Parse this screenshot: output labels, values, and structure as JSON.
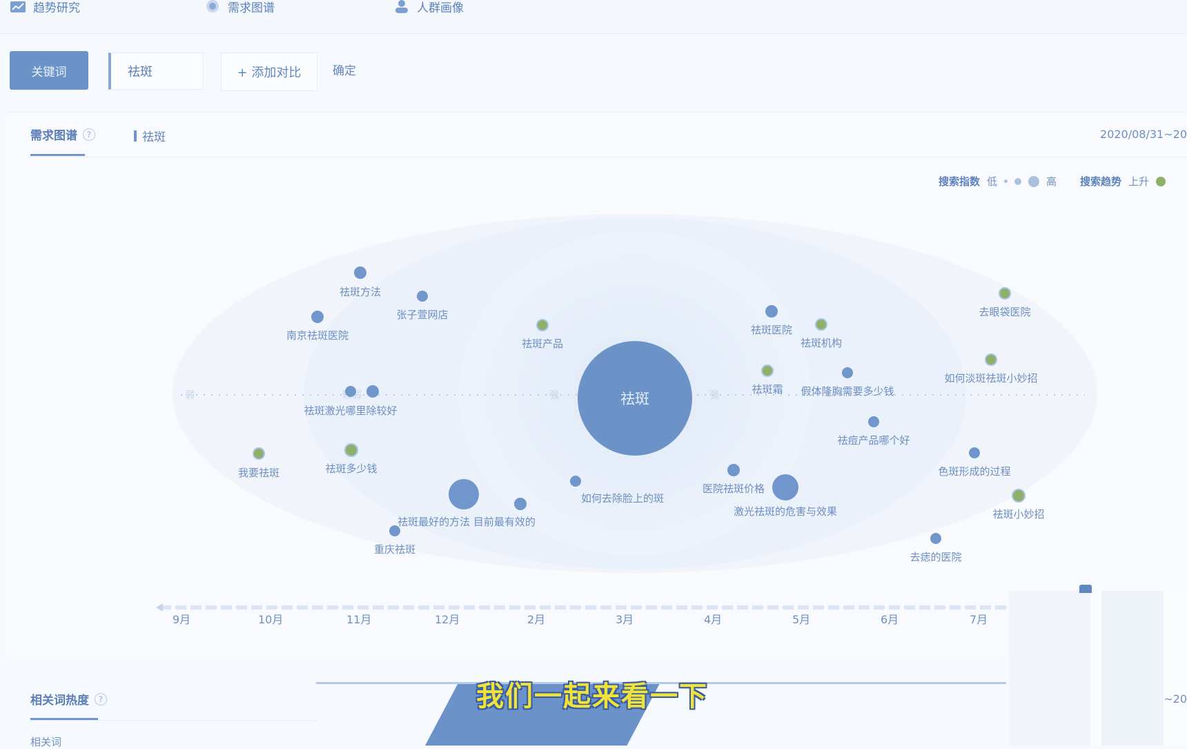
{
  "nav": {
    "items": [
      {
        "label": "趋势研究",
        "icon": "chart-icon"
      },
      {
        "label": "需求图谱",
        "icon": "graph-icon"
      },
      {
        "label": "人群画像",
        "icon": "user-icon"
      }
    ]
  },
  "toolbar": {
    "keyword_button": "关键词",
    "keyword_value": "祛斑",
    "add_compare": "+ 添加对比",
    "confirm": "确定"
  },
  "panel": {
    "tab_label": "需求图谱",
    "help_icon": "?",
    "keyword_tag": "祛斑",
    "date_range": "2020/08/31~20",
    "legend": {
      "search_index": "搜索指数",
      "low": "低",
      "high": "高",
      "search_trend": "搜索趋势",
      "rising": "上升"
    }
  },
  "graph": {
    "center": "祛斑",
    "nodes": [
      {
        "label": "祛斑方法",
        "color": "blue"
      },
      {
        "label": "张子萱网店",
        "color": "blue"
      },
      {
        "label": "南京祛斑医院",
        "color": "blue"
      },
      {
        "label": "祛斑产品",
        "color": "green"
      },
      {
        "label": "祛斑医院",
        "color": "blue"
      },
      {
        "label": "祛斑机构",
        "color": "green"
      },
      {
        "label": "去眼袋医院",
        "color": "green"
      },
      {
        "label": "如何淡斑祛斑小妙招",
        "color": "green"
      },
      {
        "label": "祛斑霜",
        "color": "green"
      },
      {
        "label": "假体隆胸需要多少钱",
        "color": "blue"
      },
      {
        "label": "祛斑激光哪里除较好",
        "color": "blue"
      },
      {
        "label": "祛痘产品哪个好",
        "color": "blue"
      },
      {
        "label": "我要祛斑",
        "color": "green"
      },
      {
        "label": "祛斑多少钱",
        "color": "green"
      },
      {
        "label": "色斑形成的过程",
        "color": "blue"
      },
      {
        "label": "祛斑小妙招",
        "color": "green"
      },
      {
        "label": "如何去除脸上的斑",
        "color": "blue"
      },
      {
        "label": "医院祛斑价格",
        "color": "blue"
      },
      {
        "label": "激光祛斑的危害与效果",
        "color": "blue"
      },
      {
        "label": "祛斑最好的方法 目前最有效的",
        "color": "blue"
      },
      {
        "label": "重庆祛斑",
        "color": "blue"
      },
      {
        "label": "去痣的医院",
        "color": "blue"
      }
    ],
    "axis_left_labels": [
      "弱",
      "较弱"
    ],
    "axis_right_labels": [
      "强"
    ]
  },
  "timeline": {
    "months": [
      "9月",
      "10月",
      "11月",
      "12月",
      "2月",
      "3月",
      "4月",
      "5月",
      "6月",
      "7月"
    ]
  },
  "subtitle": "我们一起来看一下",
  "section2": {
    "title": "相关词热度",
    "date_range": "~20",
    "col_header": "相关词"
  },
  "colors": {
    "accent": "#6b93c8",
    "node_blue": "#7096cc",
    "node_green": "#8fb06a",
    "subtitle_yellow": "#efe23a"
  }
}
